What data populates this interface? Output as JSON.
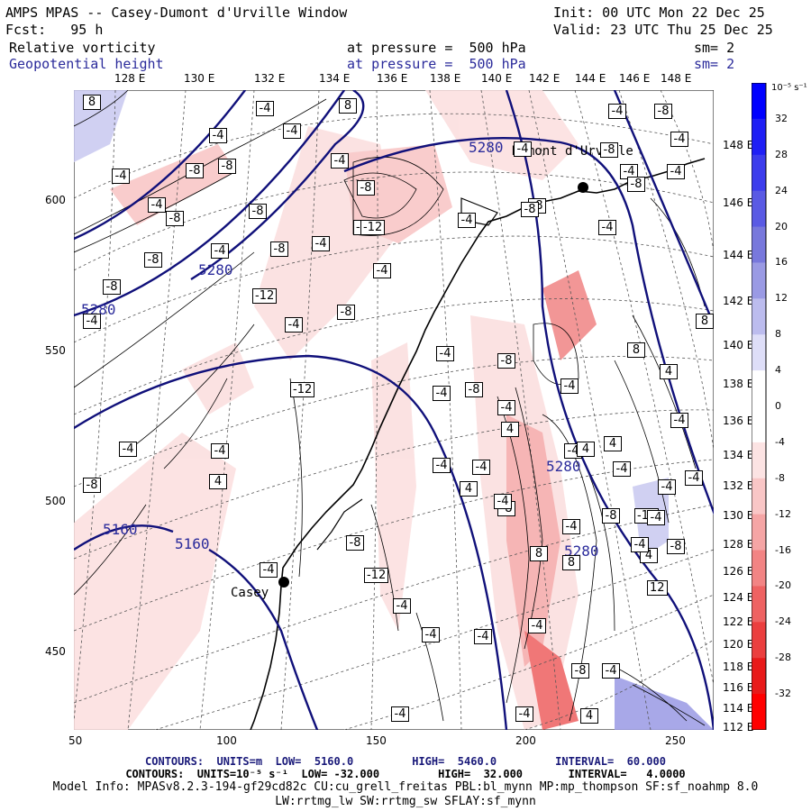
{
  "header": {
    "title": "AMPS MPAS -- Casey-Dumont d'Urville Window",
    "init": "Init: 00 UTC Mon 22 Dec 25",
    "fcst": "Fcst:   95 h",
    "valid": "Valid: 23 UTC Thu 25 Dec 25",
    "field1": "Relative vorticity",
    "field1_level": "at pressure =  500 hPa",
    "field1_sm": "sm= 2",
    "field2": "Geopotential height",
    "field2_level": "at pressure =  500 hPa",
    "field2_sm": "sm= 2"
  },
  "top_longitudes": [
    "128 E",
    "130 E",
    "132 E",
    "134 E",
    "136 E",
    "138 E",
    "140 E",
    "142 E",
    "144 E",
    "146 E",
    "148 E"
  ],
  "right_longitudes": [
    "148 E",
    "146 E",
    "144 E",
    "142 E",
    "140 E",
    "138 E",
    "136 E",
    "134 E",
    "132 E",
    "130 E",
    "128 E",
    "126 E",
    "124 E",
    "122 E",
    "120 E",
    "118 E",
    "116 E",
    "114 E",
    "112 E"
  ],
  "y_ticks": [
    "600",
    "550",
    "500",
    "450"
  ],
  "x_ticks": [
    "50",
    "100",
    "150",
    "200",
    "250"
  ],
  "places": {
    "casey": "Casey",
    "dumont": "Dumont d'Urville"
  },
  "height_labels": [
    "5280",
    "5280",
    "5280",
    "5280",
    "5280",
    "5160",
    "5160"
  ],
  "colorbar": {
    "unit": "10⁻⁵ s⁻¹",
    "labels": [
      "32",
      "28",
      "24",
      "20",
      "16",
      "12",
      "8",
      "4",
      "0",
      "-4",
      "-8",
      "-12",
      "-16",
      "-20",
      "-24",
      "-28",
      "-32"
    ],
    "colors": [
      "#0000ff",
      "#1f1ff5",
      "#3c3cec",
      "#5a5ae4",
      "#7878dc",
      "#9a9ae4",
      "#bcbcee",
      "#dedef8",
      "#ffffff",
      "#ffffff",
      "#fce3e3",
      "#f9c6c6",
      "#f5a5a5",
      "#f28484",
      "#ee6262",
      "#eb3f3f",
      "#e81a1a",
      "#ff0000"
    ]
  },
  "footer": {
    "line1": "CONTOURS:  UNITS=m  LOW=  5160.0         HIGH=  5460.0         INTERVAL=  60.000",
    "line2": "CONTOURS:  UNITS=10⁻⁵ s⁻¹  LOW= -32.000         HIGH=  32.000       INTERVAL=   4.0000",
    "line3": "Model Info: MPASv8.2.3-194-gf29cd82c CU:cu_grell_freitas PBL:bl_mynn MP:mp_thompson SF:sf_noahmp 8.0",
    "line4": "LW:rrtmg_lw SW:rrtmg_sw SFLAY:sf_mynn"
  },
  "box_labels": [
    "-8",
    "-2",
    "-4",
    "-4",
    "-8",
    "-4",
    "-4",
    "-8",
    "-4",
    "-8",
    "-8",
    "-4",
    "-4",
    "-8",
    "-8",
    "-12",
    "-4",
    "-8",
    "-4",
    "-8",
    "-4",
    "-4",
    "-4",
    "-8",
    "-4",
    "-8",
    "-12",
    "-8",
    "-4",
    "-8",
    "-4",
    "-4",
    "-8",
    "-12",
    "-4",
    "-8",
    "-4",
    "-4",
    "-8",
    "-4",
    "-12",
    "-8",
    "-4",
    "-4",
    "-4",
    "-4",
    "4",
    "-4",
    "8",
    "4",
    "8",
    "-8",
    "-4",
    "-4",
    "-8",
    "4",
    "-4",
    "-4",
    "-8",
    "-12",
    "4",
    "12",
    "-4",
    "8",
    "8",
    "4",
    "-12",
    "-8",
    "-4",
    "-4",
    "-4",
    "-4",
    "-8",
    "-4",
    "-4",
    "-4",
    "4",
    "-4",
    "-4",
    "-4",
    "-4",
    "-4",
    "4",
    "4",
    "-8",
    "-4",
    "8",
    "8"
  ]
}
